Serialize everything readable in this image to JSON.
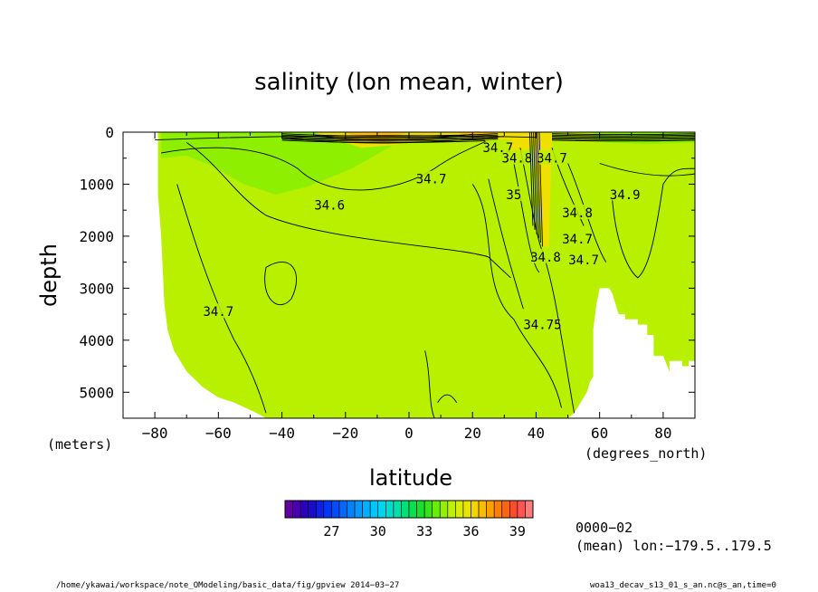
{
  "chart_data": {
    "type": "heatmap",
    "title": "salinity (lon mean, winter)",
    "xlabel": "latitude",
    "ylabel": "depth",
    "xunit": "(degrees_north)",
    "yunit": "(meters)",
    "xlim": [
      -90,
      90
    ],
    "ylim": [
      5500,
      0
    ],
    "xticks": [
      "−80",
      "−60",
      "−40",
      "−20",
      "0",
      "20",
      "40",
      "60",
      "80"
    ],
    "xtick_values": [
      -80,
      -60,
      -40,
      -20,
      0,
      20,
      40,
      60,
      80
    ],
    "yticks": [
      "0",
      "1000",
      "2000",
      "3000",
      "4000",
      "5000"
    ],
    "ytick_values": [
      0,
      1000,
      2000,
      3000,
      4000,
      5000
    ],
    "contour_labels": [
      {
        "text": "34.7",
        "x": -60,
        "y": 3450
      },
      {
        "text": "34.6",
        "x": -25,
        "y": 1400
      },
      {
        "text": "34.7",
        "x": 7,
        "y": 900
      },
      {
        "text": "34.7",
        "x": 28,
        "y": 300
      },
      {
        "text": "34.8",
        "x": 34,
        "y": 500
      },
      {
        "text": "35",
        "x": 33,
        "y": 1200
      },
      {
        "text": "34.7",
        "x": 45,
        "y": 500
      },
      {
        "text": "34.8",
        "x": 43,
        "y": 2400
      },
      {
        "text": "34.75",
        "x": 42,
        "y": 3700
      },
      {
        "text": "34.8",
        "x": 53,
        "y": 1550
      },
      {
        "text": "34.7",
        "x": 53,
        "y": 2050
      },
      {
        "text": "34.7",
        "x": 55,
        "y": 2450
      },
      {
        "text": "34.9",
        "x": 68,
        "y": 1200
      }
    ],
    "colorbar": {
      "labels": [
        "27",
        "30",
        "33",
        "36",
        "39"
      ],
      "label_values": [
        27,
        30,
        33,
        36,
        39
      ],
      "min": 24,
      "max": 40,
      "step": 0.5
    },
    "colors": {
      "field": "#b8f000",
      "fresher": "#8ef000",
      "saltier": "#f0e000",
      "saltiest": "#ffc000"
    }
  },
  "info": {
    "time": "0000−02",
    "lon": "(mean) lon:−179.5..179.5"
  },
  "footer": {
    "path": "/home/ykawai/workspace/note_OModeling/basic_data/fig/gpview  2014−03−27",
    "file": "woa13_decav_s13_01_s_an.nc@s_an,time=0"
  }
}
